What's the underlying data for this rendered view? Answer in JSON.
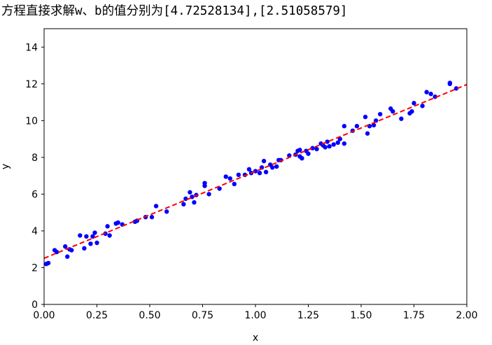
{
  "output_text": "方程直接求解w、b的值分别为[4.72528134],[2.51058579]",
  "chart_data": {
    "type": "scatter",
    "xlabel": "x",
    "ylabel": "y",
    "xlim": [
      0,
      2
    ],
    "ylim": [
      0,
      15
    ],
    "xticks": [
      "0.00",
      "0.25",
      "0.50",
      "0.75",
      "1.00",
      "1.25",
      "1.50",
      "1.75",
      "2.00"
    ],
    "xtick_values": [
      0,
      0.25,
      0.5,
      0.75,
      1.0,
      1.25,
      1.5,
      1.75,
      2.0
    ],
    "yticks": [
      "0",
      "2",
      "4",
      "6",
      "8",
      "10",
      "12",
      "14"
    ],
    "ytick_values": [
      0,
      2,
      4,
      6,
      8,
      10,
      12,
      14
    ],
    "grid": false,
    "points": [
      [
        0.01,
        2.2
      ],
      [
        0.02,
        2.25
      ],
      [
        0.05,
        2.95
      ],
      [
        0.06,
        2.85
      ],
      [
        0.1,
        3.15
      ],
      [
        0.11,
        2.6
      ],
      [
        0.12,
        3.0
      ],
      [
        0.13,
        2.95
      ],
      [
        0.17,
        3.75
      ],
      [
        0.19,
        3.05
      ],
      [
        0.2,
        3.7
      ],
      [
        0.22,
        3.3
      ],
      [
        0.23,
        3.7
      ],
      [
        0.24,
        3.9
      ],
      [
        0.25,
        3.35
      ],
      [
        0.29,
        3.85
      ],
      [
        0.3,
        4.25
      ],
      [
        0.31,
        3.75
      ],
      [
        0.34,
        4.4
      ],
      [
        0.35,
        4.45
      ],
      [
        0.37,
        4.35
      ],
      [
        0.43,
        4.5
      ],
      [
        0.44,
        4.55
      ],
      [
        0.48,
        4.75
      ],
      [
        0.51,
        4.75
      ],
      [
        0.53,
        5.35
      ],
      [
        0.58,
        5.05
      ],
      [
        0.66,
        5.45
      ],
      [
        0.67,
        5.75
      ],
      [
        0.69,
        6.1
      ],
      [
        0.7,
        5.85
      ],
      [
        0.71,
        5.55
      ],
      [
        0.72,
        5.95
      ],
      [
        0.76,
        6.45
      ],
      [
        0.76,
        6.6
      ],
      [
        0.78,
        6.0
      ],
      [
        0.83,
        6.3
      ],
      [
        0.86,
        6.95
      ],
      [
        0.88,
        6.85
      ],
      [
        0.9,
        6.55
      ],
      [
        0.92,
        7.05
      ],
      [
        0.95,
        7.05
      ],
      [
        0.97,
        7.35
      ],
      [
        0.98,
        7.15
      ],
      [
        1.0,
        7.25
      ],
      [
        1.02,
        7.15
      ],
      [
        1.03,
        7.45
      ],
      [
        1.04,
        7.8
      ],
      [
        1.05,
        7.2
      ],
      [
        1.07,
        7.6
      ],
      [
        1.08,
        7.45
      ],
      [
        1.1,
        7.5
      ],
      [
        1.11,
        7.85
      ],
      [
        1.12,
        7.85
      ],
      [
        1.16,
        8.1
      ],
      [
        1.19,
        8.15
      ],
      [
        1.2,
        8.35
      ],
      [
        1.21,
        8.05
      ],
      [
        1.21,
        8.4
      ],
      [
        1.22,
        7.95
      ],
      [
        1.24,
        8.35
      ],
      [
        1.25,
        8.2
      ],
      [
        1.27,
        8.5
      ],
      [
        1.29,
        8.45
      ],
      [
        1.31,
        8.75
      ],
      [
        1.32,
        8.65
      ],
      [
        1.33,
        8.55
      ],
      [
        1.34,
        8.85
      ],
      [
        1.35,
        8.6
      ],
      [
        1.37,
        8.7
      ],
      [
        1.39,
        8.8
      ],
      [
        1.4,
        9.0
      ],
      [
        1.42,
        8.75
      ],
      [
        1.42,
        9.7
      ],
      [
        1.46,
        9.45
      ],
      [
        1.48,
        9.7
      ],
      [
        1.52,
        10.2
      ],
      [
        1.53,
        9.3
      ],
      [
        1.54,
        9.7
      ],
      [
        1.56,
        9.75
      ],
      [
        1.57,
        10.0
      ],
      [
        1.59,
        10.35
      ],
      [
        1.64,
        10.65
      ],
      [
        1.65,
        10.5
      ],
      [
        1.69,
        10.1
      ],
      [
        1.73,
        10.4
      ],
      [
        1.74,
        10.5
      ],
      [
        1.75,
        10.95
      ],
      [
        1.79,
        10.8
      ],
      [
        1.81,
        11.55
      ],
      [
        1.83,
        11.45
      ],
      [
        1.85,
        11.3
      ],
      [
        1.92,
        12.05
      ],
      [
        1.92,
        12.0
      ],
      [
        1.95,
        11.75
      ]
    ],
    "fit_line": {
      "w": 4.72528134,
      "b": 2.51058579,
      "x_range": [
        0,
        2
      ]
    },
    "colors": {
      "points": "#0000ff",
      "fit_line": "#ff0000",
      "axes": "#000000"
    }
  }
}
